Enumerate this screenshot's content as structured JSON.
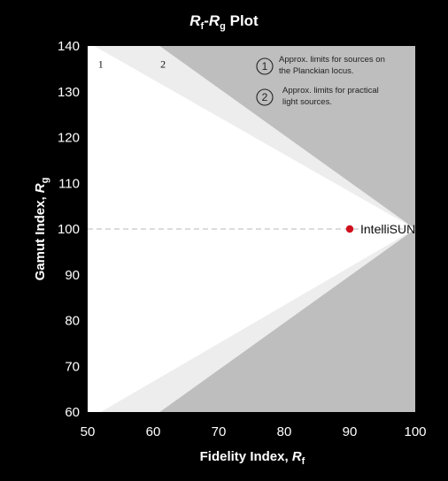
{
  "chart_data": {
    "type": "scatter",
    "title": {
      "r1": "R",
      "s1": "f",
      "dash": "-",
      "r2": "R",
      "s2": "g",
      "rest": " Plot"
    },
    "xlabel": {
      "main": "Fidelity Index, ",
      "var": "R",
      "sub": "f"
    },
    "ylabel": {
      "main": "Gamut Index, ",
      "var": "R",
      "sub": "g"
    },
    "xlim": [
      50,
      100
    ],
    "ylim": [
      60,
      140
    ],
    "xticks": [
      "50",
      "60",
      "70",
      "80",
      "90",
      "100"
    ],
    "yticks": [
      "60",
      "70",
      "80",
      "90",
      "100",
      "110",
      "120",
      "130",
      "140"
    ],
    "reference_line_y": 100,
    "regions": {
      "outer": {
        "top": [
          [
            50,
            140
          ],
          [
            61,
            140
          ],
          [
            100,
            100
          ]
        ],
        "bottom": [
          [
            50,
            60
          ],
          [
            61,
            60
          ],
          [
            100,
            100
          ]
        ]
      },
      "inner": {
        "top": [
          [
            50,
            140
          ],
          [
            51,
            140
          ],
          [
            100,
            100
          ]
        ],
        "bottom": [
          [
            50,
            60
          ],
          [
            52,
            60
          ],
          [
            100,
            100
          ]
        ]
      }
    },
    "region_labels": [
      "1",
      "2"
    ],
    "legend": [
      {
        "num": "1",
        "lines": [
          "Approx. limits for sources on",
          "the Planckian locus."
        ]
      },
      {
        "num": "2",
        "lines": [
          "Approx. limits for practical",
          "light sources."
        ]
      }
    ],
    "points": [
      {
        "label": "IntelliSUN",
        "x": 90,
        "y": 100
      }
    ],
    "colors": {
      "background": "#000000",
      "plot_bg": "#bebebe",
      "outer_region": "#ededed",
      "inner_region": "#ffffff",
      "point": "#d0101c",
      "reference_line": "#b8b8b8"
    }
  }
}
